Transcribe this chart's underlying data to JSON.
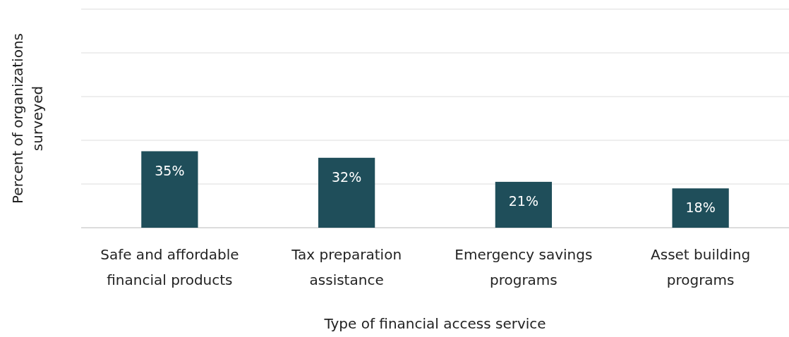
{
  "chart_data": {
    "type": "bar",
    "xlabel": "Type of financial access service",
    "ylabel": "Percent of organizations surveyed",
    "categories": [
      "Safe and affordable financial products",
      "Tax preparation assistance",
      "Emergency savings programs",
      "Asset building programs"
    ],
    "values": [
      35,
      32,
      21,
      18
    ],
    "value_labels": [
      "35%",
      "32%",
      "21%",
      "18%"
    ],
    "color": "#1f4e5a",
    "ylim": [
      0,
      100
    ],
    "yticks": [
      {
        "value": 0,
        "label": null
      },
      {
        "value": 20,
        "label": null
      },
      {
        "value": 40,
        "label": null
      },
      {
        "value": 60,
        "label": null
      },
      {
        "value": 80,
        "label": null
      },
      {
        "value": 100,
        "label": null
      }
    ],
    "grid": "y",
    "tick_labels": "x"
  }
}
